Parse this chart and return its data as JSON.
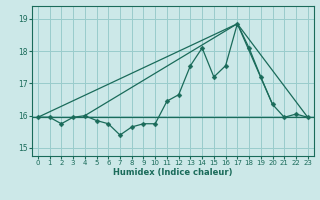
{
  "title": "",
  "xlabel": "Humidex (Indice chaleur)",
  "bg_color": "#cce8e8",
  "grid_color": "#99cccc",
  "line_color": "#1a6b5a",
  "xlim": [
    -0.5,
    23.5
  ],
  "ylim": [
    14.75,
    19.4
  ],
  "yticks": [
    15,
    16,
    17,
    18,
    19
  ],
  "xticks": [
    0,
    1,
    2,
    3,
    4,
    5,
    6,
    7,
    8,
    9,
    10,
    11,
    12,
    13,
    14,
    15,
    16,
    17,
    18,
    19,
    20,
    21,
    22,
    23
  ],
  "series": [
    [
      0,
      15.95
    ],
    [
      1,
      15.95
    ],
    [
      2,
      15.75
    ],
    [
      3,
      15.95
    ],
    [
      4,
      16.0
    ],
    [
      5,
      15.85
    ],
    [
      6,
      15.75
    ],
    [
      7,
      15.4
    ],
    [
      8,
      15.65
    ],
    [
      9,
      15.75
    ],
    [
      10,
      15.75
    ],
    [
      11,
      16.45
    ],
    [
      12,
      16.65
    ],
    [
      13,
      17.55
    ],
    [
      14,
      18.1
    ],
    [
      15,
      17.2
    ],
    [
      16,
      17.55
    ],
    [
      17,
      18.85
    ],
    [
      18,
      18.1
    ],
    [
      19,
      17.2
    ],
    [
      20,
      16.35
    ],
    [
      21,
      15.95
    ],
    [
      22,
      16.05
    ],
    [
      23,
      15.95
    ]
  ],
  "line_hline_y": 15.95,
  "line2": [
    [
      0,
      15.95
    ],
    [
      17,
      18.85
    ],
    [
      23,
      15.95
    ]
  ],
  "line3": [
    [
      4,
      16.0
    ],
    [
      17,
      18.85
    ],
    [
      20,
      16.35
    ]
  ]
}
